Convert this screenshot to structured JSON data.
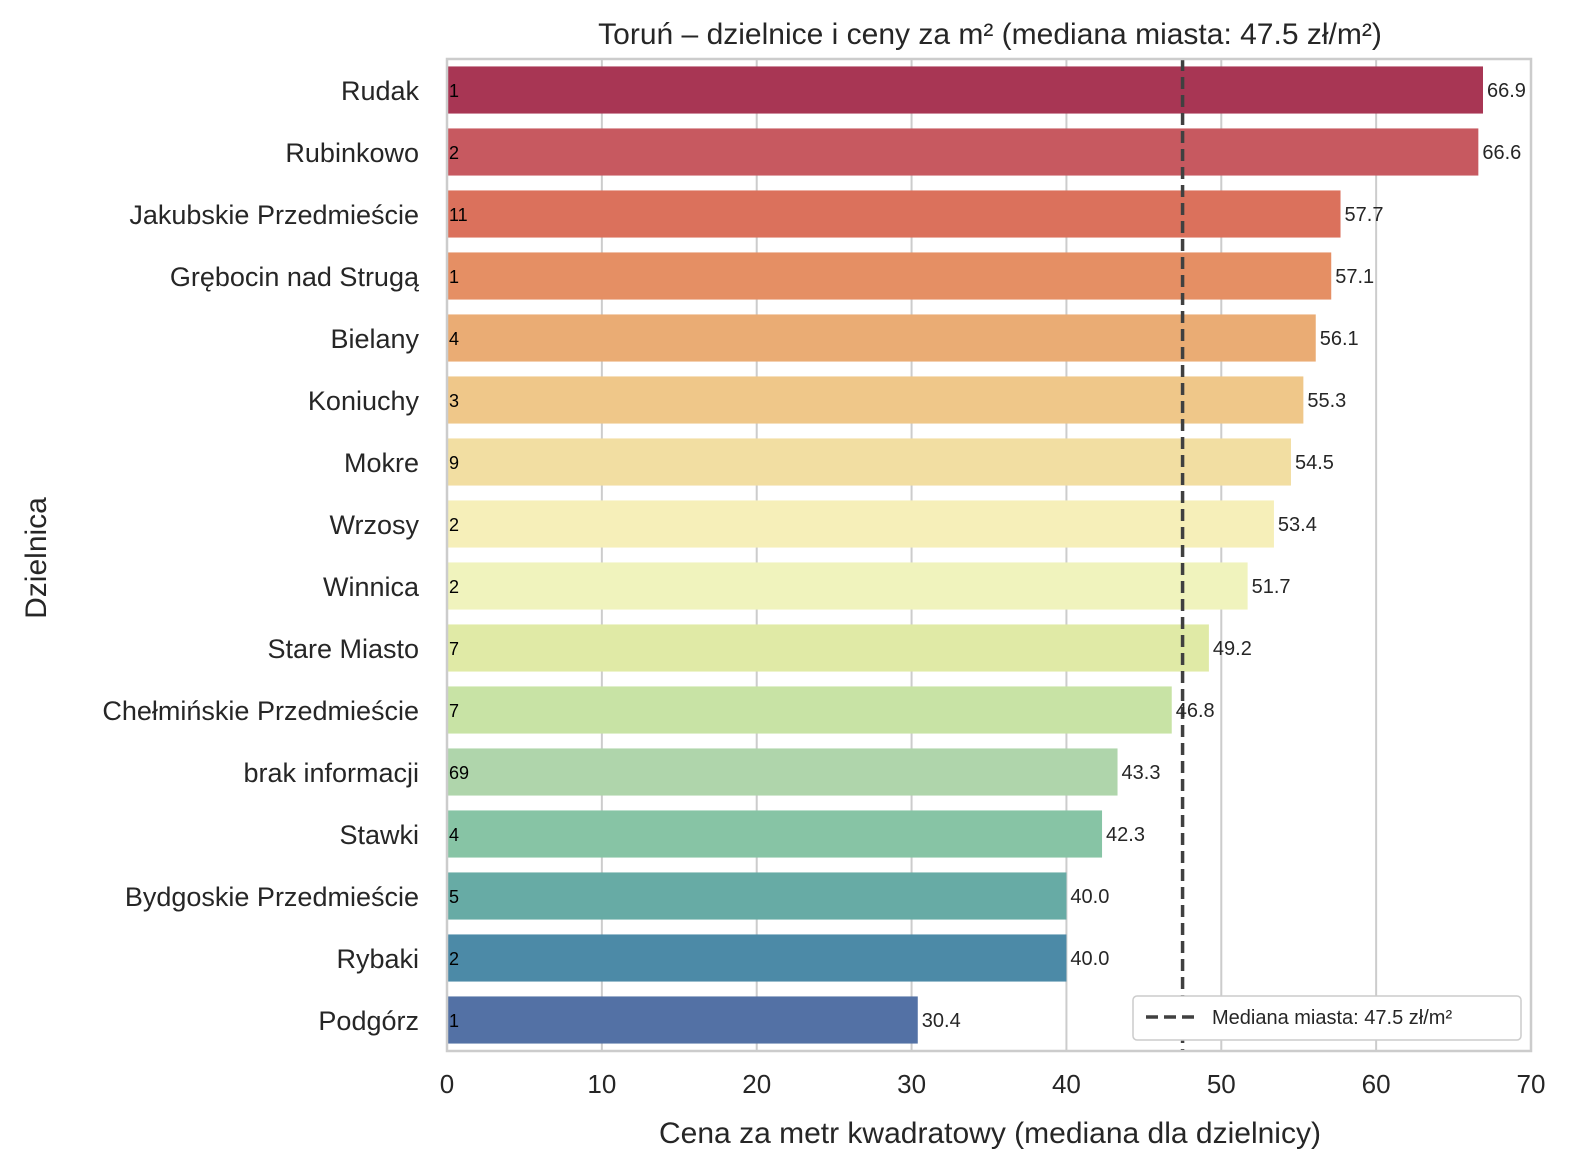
{
  "chart_data": {
    "type": "bar",
    "orientation": "horizontal",
    "title": "Toruń – dzielnice i ceny za m² (mediana miasta: 47.5 zł/m²)",
    "xlabel": "Cena za metr kwadratowy (mediana dla dzielnicy)",
    "ylabel": "Dzielnica",
    "xlim": [
      0,
      70
    ],
    "xticks": [
      "0",
      "10",
      "20",
      "30",
      "40",
      "50",
      "60",
      "70"
    ],
    "grid": true,
    "legend_position": "bottom-right",
    "categories": [
      "Rudak",
      "Rubinkowo",
      "Jakubskie Przedmieście",
      "Grębocin nad Strugą",
      "Bielany",
      "Koniuchy",
      "Mokre",
      "Wrzosy",
      "Winnica",
      "Stare Miasto",
      "Chełmińskie Przedmieście",
      "brak informacji",
      "Stawki",
      "Bydgoskie Przedmieście",
      "Rybaki",
      "Podgórz"
    ],
    "values": [
      66.9,
      66.6,
      57.7,
      57.1,
      56.1,
      55.3,
      54.5,
      53.4,
      51.7,
      49.2,
      46.8,
      43.3,
      42.3,
      40.0,
      40.0,
      30.4
    ],
    "value_labels": [
      "66.9",
      "66.6",
      "57.7",
      "57.1",
      "56.1",
      "55.3",
      "54.5",
      "53.4",
      "51.7",
      "49.2",
      "46.8",
      "43.3",
      "42.3",
      "40.0",
      "40.0",
      "30.4"
    ],
    "counts": [
      "1",
      "2",
      "11",
      "1",
      "4",
      "3",
      "9",
      "2",
      "2",
      "7",
      "7",
      "69",
      "4",
      "5",
      "2",
      "1"
    ],
    "colors": [
      "#a83654",
      "#c75960",
      "#db715c",
      "#e58f64",
      "#eaac74",
      "#efc789",
      "#f2dea2",
      "#f6efb9",
      "#f0f3bd",
      "#e0eaa6",
      "#c8e3a5",
      "#afd5ab",
      "#87c4a5",
      "#67aba5",
      "#4c8aa7",
      "#5371a5"
    ],
    "reference_line": {
      "value": 47.5,
      "label": "Mediana miasta: 47.5 zł/m²"
    }
  }
}
